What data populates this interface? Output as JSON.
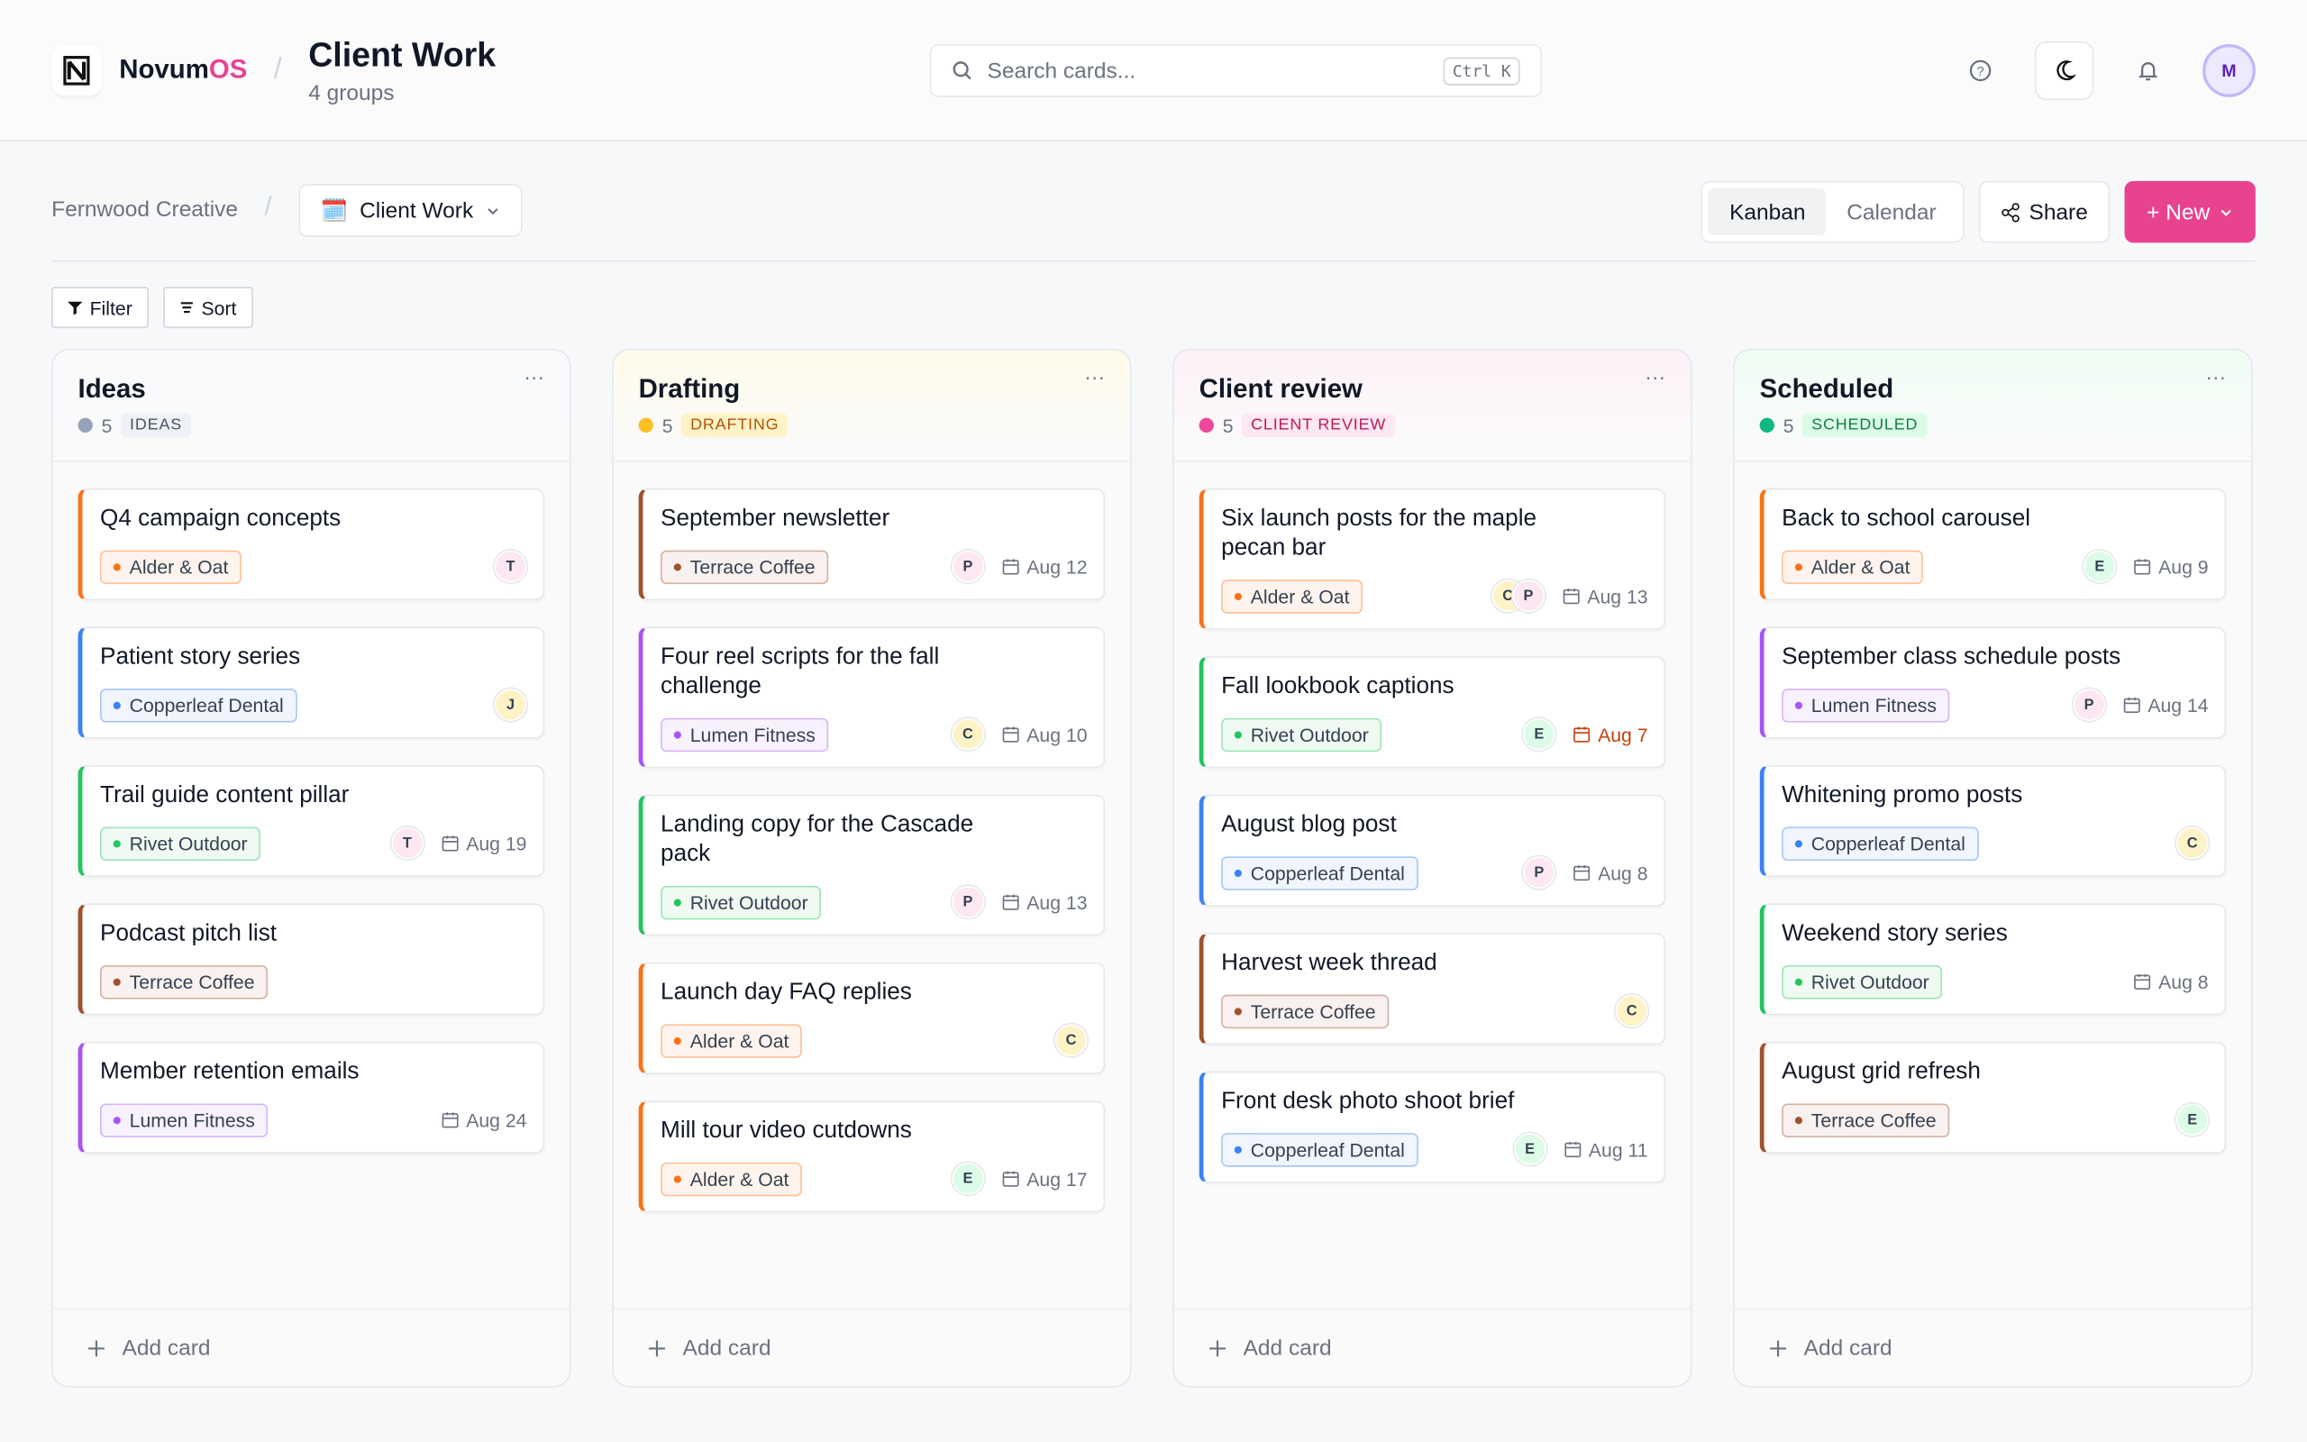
{
  "header": {
    "brand": {
      "main": "Novum",
      "accent": "OS"
    },
    "title": "Client Work",
    "subtitle": "4 groups",
    "search": {
      "placeholder": "Search cards...",
      "shortcut": "Ctrl K"
    },
    "avatar": "M"
  },
  "toolbar": {
    "workspace": "Fernwood Creative",
    "board": {
      "icon": "🗓️",
      "name": "Client Work"
    },
    "views": [
      "Kanban",
      "Calendar"
    ],
    "active_view": 0,
    "share": "Share",
    "new": "+ New",
    "filter": "Filter",
    "sort": "Sort"
  },
  "columns": [
    {
      "name": "Ideas",
      "count": "5",
      "tag": "IDEAS",
      "color": "#94a3b8",
      "tag_bg": "#eef1f5",
      "tag_fg": "#475569",
      "tint": "#f8fafc",
      "add": "Add card",
      "cards": [
        {
          "title": "Q4 campaign concepts",
          "client": "Alder & Oat",
          "color": "#f97316",
          "avatars": [
            {
              "initial": "T",
              "color": "#fce7f3"
            }
          ]
        },
        {
          "title": "Patient story series",
          "client": "Copperleaf Dental",
          "color": "#3b82f6",
          "avatars": [
            {
              "initial": "J",
              "color": "#fef3c7"
            }
          ]
        },
        {
          "title": "Trail guide content pillar",
          "client": "Rivet Outdoor",
          "color": "#22c55e",
          "avatars": [
            {
              "initial": "T",
              "color": "#fce7f3"
            }
          ],
          "date": "Aug 19"
        },
        {
          "title": "Podcast pitch list",
          "client": "Terrace Coffee",
          "color": "#a0522d",
          "avatars": []
        },
        {
          "title": "Member retention emails",
          "client": "Lumen Fitness",
          "color": "#a855f7",
          "avatars": [],
          "date": "Aug 24"
        }
      ]
    },
    {
      "name": "Drafting",
      "count": "5",
      "tag": "DRAFTING",
      "color": "#fbbf24",
      "tag_bg": "#fef3c7",
      "tag_fg": "#b45309",
      "tint": "#fffbeb",
      "add": "Add card",
      "cards": [
        {
          "title": "September newsletter",
          "client": "Terrace Coffee",
          "color": "#a0522d",
          "avatars": [
            {
              "initial": "P",
              "color": "#fce7f3"
            }
          ],
          "date": "Aug 12"
        },
        {
          "title": "Four reel scripts for the fall challenge",
          "client": "Lumen Fitness",
          "color": "#a855f7",
          "avatars": [
            {
              "initial": "C",
              "color": "#fef3c7"
            }
          ],
          "date": "Aug 10"
        },
        {
          "title": "Landing copy for the Cascade pack",
          "client": "Rivet Outdoor",
          "color": "#22c55e",
          "avatars": [
            {
              "initial": "P",
              "color": "#fce7f3"
            }
          ],
          "date": "Aug 13"
        },
        {
          "title": "Launch day FAQ replies",
          "client": "Alder & Oat",
          "color": "#f97316",
          "avatars": [
            {
              "initial": "C",
              "color": "#fef3c7"
            }
          ]
        },
        {
          "title": "Mill tour video cutdowns",
          "client": "Alder & Oat",
          "color": "#f97316",
          "avatars": [
            {
              "initial": "E",
              "color": "#dcfce7"
            }
          ],
          "date": "Aug 17"
        }
      ]
    },
    {
      "name": "Client review",
      "count": "5",
      "tag": "CLIENT REVIEW",
      "color": "#ec4899",
      "tag_bg": "#fce7f3",
      "tag_fg": "#be185d",
      "tint": "#fdf2f8",
      "add": "Add card",
      "cards": [
        {
          "title": "Six launch posts for the maple pecan bar",
          "client": "Alder & Oat",
          "color": "#f97316",
          "avatars": [
            {
              "initial": "C",
              "color": "#fef3c7"
            },
            {
              "initial": "P",
              "color": "#fce7f3"
            }
          ],
          "date": "Aug 13"
        },
        {
          "title": "Fall lookbook captions",
          "client": "Rivet Outdoor",
          "color": "#22c55e",
          "avatars": [
            {
              "initial": "E",
              "color": "#dcfce7"
            }
          ],
          "date": "Aug 7",
          "overdue": true
        },
        {
          "title": "August blog post",
          "client": "Copperleaf Dental",
          "color": "#3b82f6",
          "avatars": [
            {
              "initial": "P",
              "color": "#fce7f3"
            }
          ],
          "date": "Aug 8"
        },
        {
          "title": "Harvest week thread",
          "client": "Terrace Coffee",
          "color": "#a0522d",
          "avatars": [
            {
              "initial": "C",
              "color": "#fef3c7"
            }
          ]
        },
        {
          "title": "Front desk photo shoot brief",
          "client": "Copperleaf Dental",
          "color": "#3b82f6",
          "avatars": [
            {
              "initial": "E",
              "color": "#dcfce7"
            }
          ],
          "date": "Aug 11"
        }
      ]
    },
    {
      "name": "Scheduled",
      "count": "5",
      "tag": "SCHEDULED",
      "color": "#10b981",
      "tag_bg": "#dcfce7",
      "tag_fg": "#15803d",
      "tint": "#f0fdf4",
      "add": "Add card",
      "cards": [
        {
          "title": "Back to school carousel",
          "client": "Alder & Oat",
          "color": "#f97316",
          "avatars": [
            {
              "initial": "E",
              "color": "#dcfce7"
            }
          ],
          "date": "Aug 9"
        },
        {
          "title": "September class schedule posts",
          "client": "Lumen Fitness",
          "color": "#a855f7",
          "avatars": [
            {
              "initial": "P",
              "color": "#fce7f3"
            }
          ],
          "date": "Aug 14"
        },
        {
          "title": "Whitening promo posts",
          "client": "Copperleaf Dental",
          "color": "#3b82f6",
          "avatars": [
            {
              "initial": "C",
              "color": "#fef3c7"
            }
          ]
        },
        {
          "title": "Weekend story series",
          "client": "Rivet Outdoor",
          "color": "#22c55e",
          "avatars": [],
          "date": "Aug 8"
        },
        {
          "title": "August grid refresh",
          "client": "Terrace Coffee",
          "color": "#a0522d",
          "avatars": [
            {
              "initial": "E",
              "color": "#dcfce7"
            }
          ]
        }
      ]
    }
  ]
}
